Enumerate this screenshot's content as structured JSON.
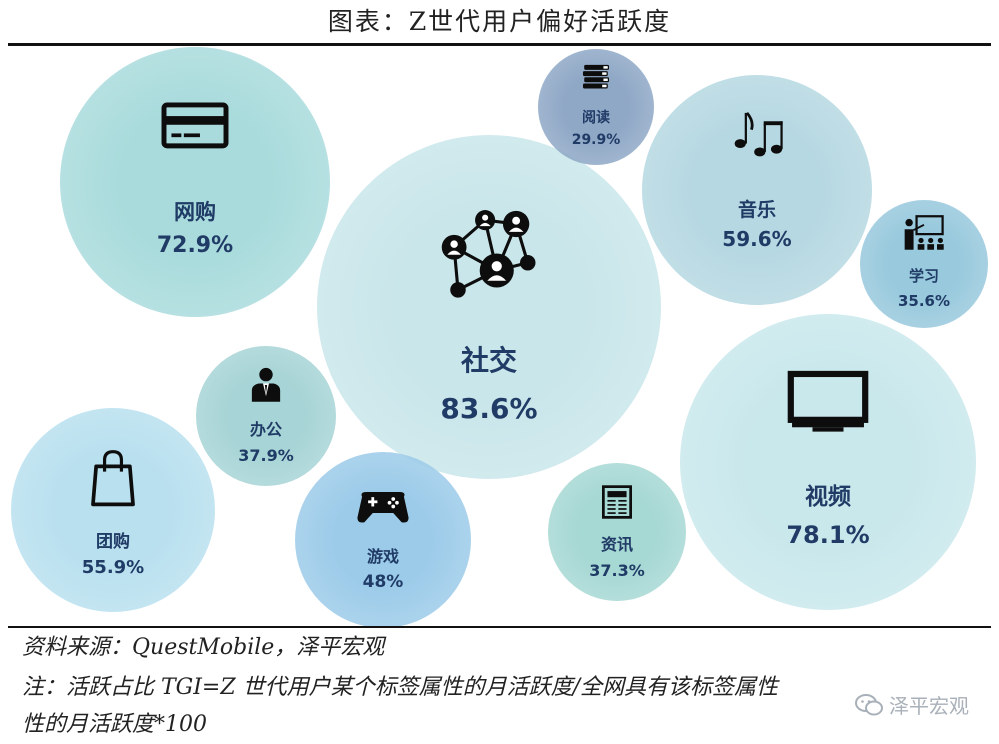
{
  "header": {
    "title": "图表：Z世代用户偏好活跃度"
  },
  "chart_data": {
    "type": "bubble",
    "title": "图表：Z世代用户偏好活跃度",
    "unit": "%",
    "categories": [
      "社交",
      "视频",
      "网购",
      "音乐",
      "团购",
      "游戏",
      "办公",
      "资讯",
      "学习",
      "阅读"
    ],
    "values": [
      83.6,
      78.1,
      72.9,
      59.6,
      55.9,
      48,
      37.9,
      37.3,
      35.6,
      29.9
    ],
    "value_labels": [
      "83.6%",
      "78.1%",
      "72.9%",
      "59.6%",
      "55.9%",
      "48%",
      "37.9%",
      "37.3%",
      "35.6%",
      "29.9%"
    ],
    "icons": [
      "social-network-icon",
      "tv-icon",
      "credit-card-icon",
      "music-note-icon",
      "shopping-bag-icon",
      "gamepad-icon",
      "office-worker-icon",
      "newspaper-icon",
      "teacher-board-icon",
      "books-icon"
    ],
    "colors": [
      "#c9e6ea",
      "#c9e8ec",
      "#a9dbdc",
      "#b6d8e2",
      "#b9e0ef",
      "#9ccbe9",
      "#a7d4d6",
      "#a6d8d4",
      "#98c9dd",
      "#8fa8c6"
    ],
    "label_color": "#1f3b66"
  },
  "footer": {
    "source": "资料来源：QuestMobile，泽平宏观",
    "note_line1": "注：活跃占比 TGI=Z 世代用户某个标签属性的月活跃度/全网具有该标签属性",
    "note_line2": "性的月活跃度*100",
    "watermark": "泽平宏观"
  }
}
